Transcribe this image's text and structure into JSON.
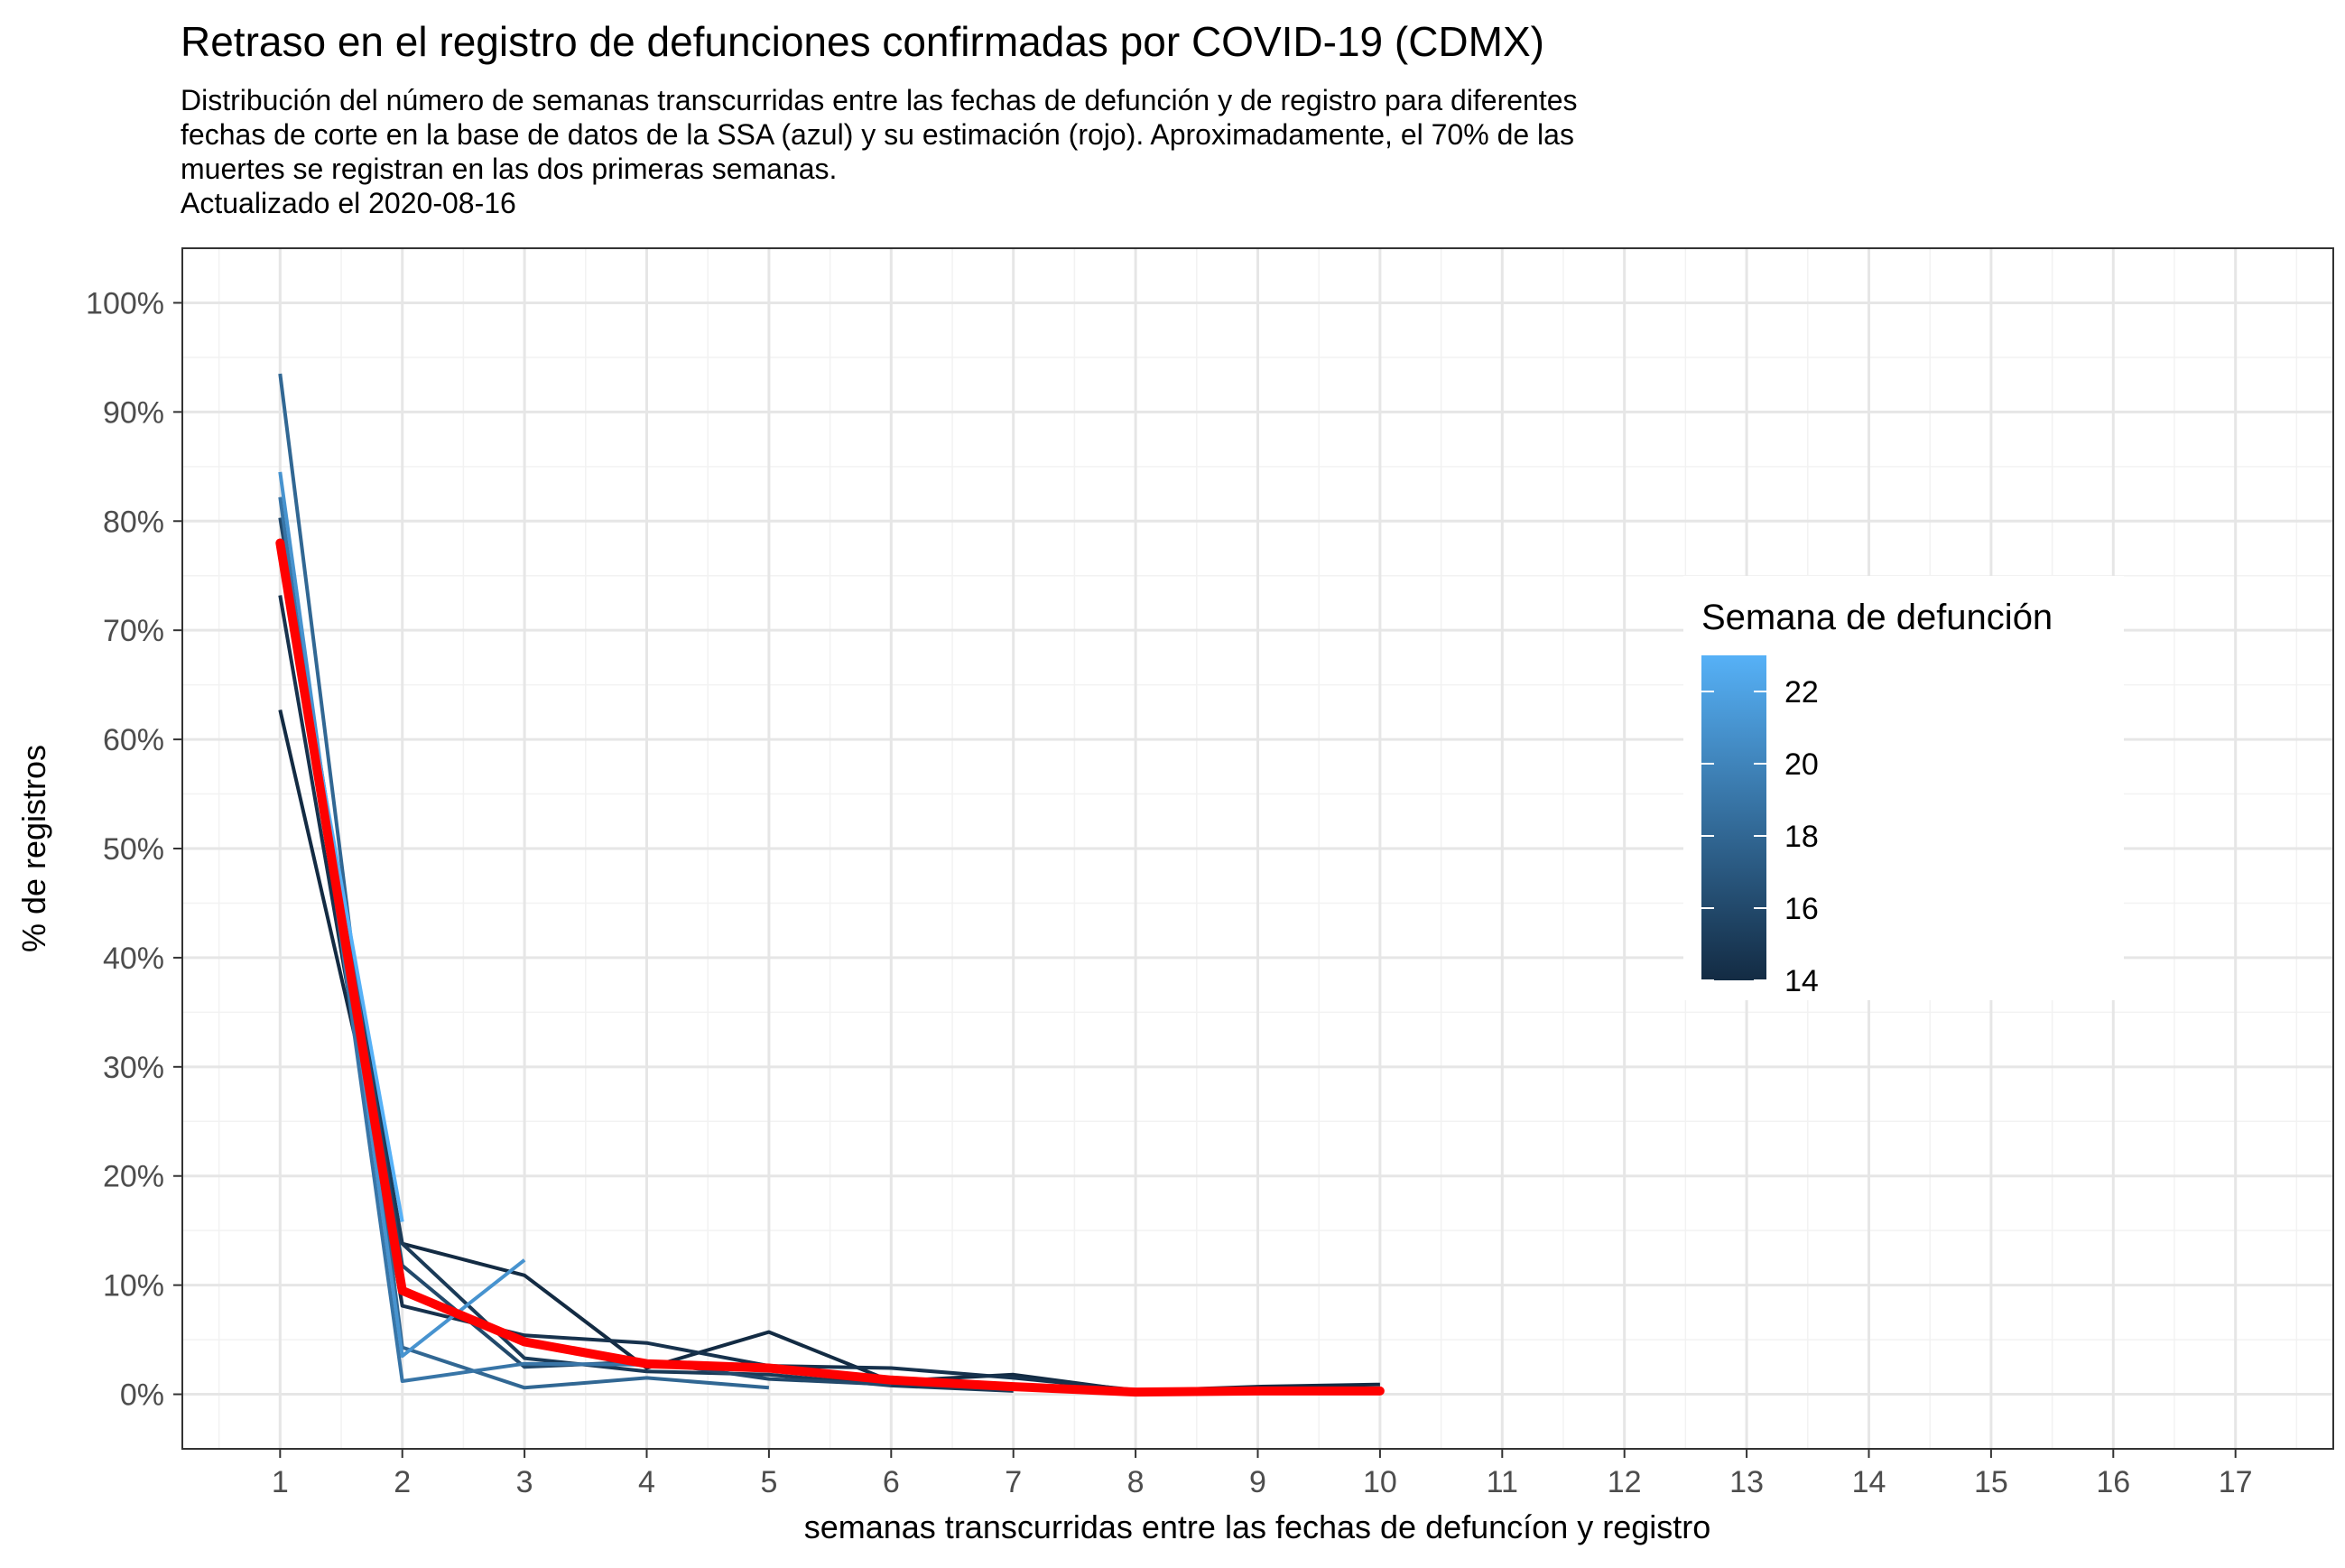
{
  "chart_data": {
    "type": "line",
    "title": "Retraso en el registro de defunciones confirmadas por COVID-19 (CDMX)",
    "subtitle_lines": [
      "Distribución del número de semanas transcurridas entre las fechas de defunción y de registro para diferentes",
      "fechas de corte en la base de datos de la SSA (azul) y su estimación (rojo). Aproximadamente, el 70% de las",
      "muertes se registran en las dos primeras semanas.",
      "Actualizado el  2020-08-16"
    ],
    "xlabel": "semanas transcurridas entre las fechas de defuncíon y registro",
    "ylabel": "% de registros",
    "xlim": [
      0.2,
      17.8
    ],
    "ylim": [
      -5,
      105
    ],
    "x_ticks": [
      1,
      2,
      3,
      4,
      5,
      6,
      7,
      8,
      9,
      10,
      11,
      12,
      13,
      14,
      15,
      16,
      17
    ],
    "y_ticks": [
      0,
      10,
      20,
      30,
      40,
      50,
      60,
      70,
      80,
      90,
      100
    ],
    "y_tick_labels": [
      "0%",
      "10%",
      "20%",
      "30%",
      "40%",
      "50%",
      "60%",
      "70%",
      "80%",
      "90%",
      "100%"
    ],
    "grid": true,
    "legend": {
      "title": "Semana de defunción",
      "position": "right",
      "range": [
        14,
        23
      ],
      "labels": [
        14,
        16,
        18,
        20,
        22
      ],
      "color_low": "#132B43",
      "color_high": "#56B1F7"
    },
    "series": [
      {
        "week": 14,
        "x": [
          1,
          2,
          3,
          4,
          5,
          6,
          7,
          8,
          9,
          10
        ],
        "y": [
          62.7,
          13.8,
          10.9,
          2.4,
          5.7,
          1.2,
          1.8,
          0.3,
          0.7,
          0.9
        ]
      },
      {
        "week": 14.5,
        "x": [
          1,
          2,
          3,
          4,
          5,
          6,
          7,
          8,
          9,
          10
        ],
        "y": [
          73.2,
          8.1,
          5.4,
          4.7,
          2.6,
          2.4,
          1.5,
          0.4,
          0.4,
          0.5
        ]
      },
      {
        "week": 15,
        "x": [
          1,
          2,
          3,
          4,
          5,
          6,
          7
        ],
        "y": [
          78.3,
          13.8,
          3.3,
          2.1,
          1.8,
          0.8,
          0.3
        ]
      },
      {
        "week": 16,
        "x": [
          1,
          2,
          3,
          4,
          5,
          6
        ],
        "y": [
          80.3,
          11.8,
          2.5,
          3.0,
          1.4,
          0.9
        ]
      },
      {
        "week": 18,
        "x": [
          1,
          2,
          3,
          4,
          5
        ],
        "y": [
          93.5,
          4.3,
          0.6,
          1.5,
          0.6
        ]
      },
      {
        "week": 19,
        "x": [
          1,
          2,
          3,
          4
        ],
        "y": [
          82.2,
          1.2,
          2.8,
          2.7
        ]
      },
      {
        "week": 21,
        "x": [
          1,
          2,
          3
        ],
        "y": [
          84.5,
          3.5,
          12.3
        ]
      },
      {
        "week": 23,
        "x": [
          1,
          2
        ],
        "y": [
          78.0,
          15.8
        ]
      }
    ],
    "estimate": {
      "name": "estimación",
      "color": "#FF0000",
      "x": [
        1,
        2,
        3,
        4,
        5,
        6,
        7,
        8,
        9,
        10
      ],
      "y": [
        78.0,
        9.5,
        4.8,
        2.8,
        2.4,
        1.3,
        0.7,
        0.2,
        0.3,
        0.3
      ]
    }
  }
}
